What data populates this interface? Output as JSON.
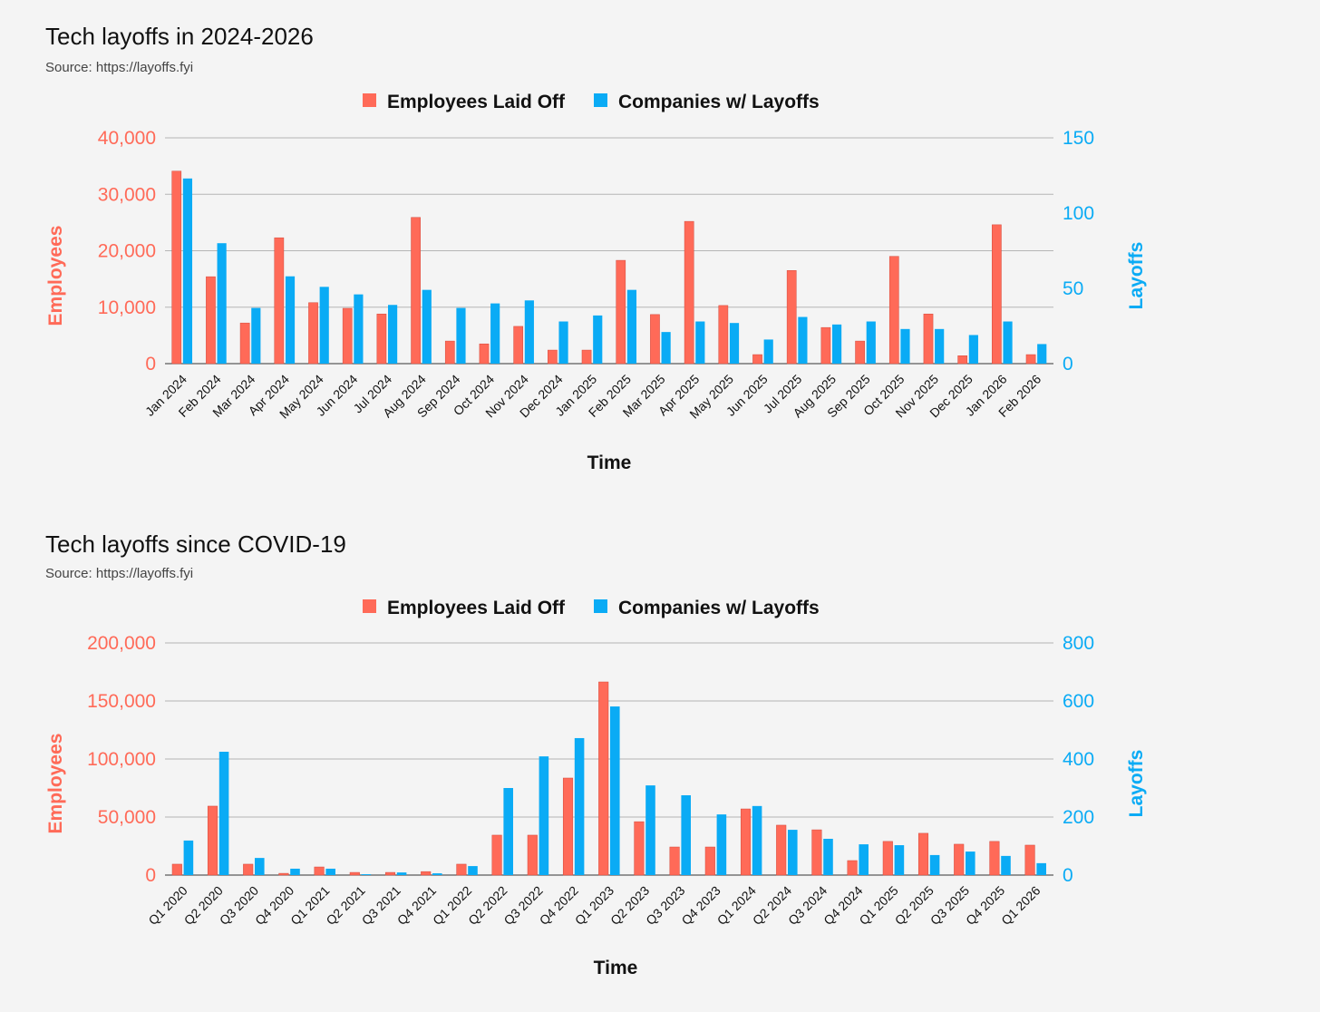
{
  "colors": {
    "employees": "#FF6A58",
    "companies": "#0AABF5"
  },
  "chart_data": [
    {
      "type": "bar",
      "title": "Tech layoffs in 2024-2026",
      "subtitle": "Source: https://layoffs.fyi",
      "xlabel": "Time",
      "ylabel": "Employees",
      "y2label": "Layoffs",
      "ylim": [
        0,
        40000
      ],
      "y2lim": [
        0,
        150
      ],
      "yticks": [
        "0",
        "10,000",
        "20,000",
        "30,000",
        "40,000"
      ],
      "yticks_values": [
        0,
        10000,
        20000,
        30000,
        40000
      ],
      "y2ticks": [
        "0",
        "50",
        "100",
        "150"
      ],
      "y2ticks_values": [
        0,
        50,
        100,
        150
      ],
      "legend": [
        "Employees Laid Off",
        "Companies w/ Layoffs"
      ],
      "legend_position": "top-center",
      "grid": true,
      "categories": [
        "Jan 2024",
        "Feb 2024",
        "Mar 2024",
        "Apr 2024",
        "May 2024",
        "Jun 2024",
        "Jul 2024",
        "Aug 2024",
        "Sep 2024",
        "Oct 2024",
        "Nov 2024",
        "Dec 2024",
        "Jan 2025",
        "Feb 2025",
        "Mar 2025",
        "Apr 2025",
        "May 2025",
        "Jun 2025",
        "Jul 2025",
        "Aug 2025",
        "Sep 2025",
        "Oct 2025",
        "Nov 2025",
        "Dec 2025",
        "Jan 2026",
        "Feb 2026"
      ],
      "series": [
        {
          "name": "Employees Laid Off",
          "axis": "left",
          "values": [
            34100,
            15400,
            7200,
            22300,
            10800,
            9800,
            8800,
            25900,
            4000,
            3500,
            6600,
            2400,
            2400,
            18300,
            8700,
            25200,
            10300,
            1600,
            16500,
            6400,
            4000,
            19000,
            8800,
            1400,
            24600,
            1600
          ]
        },
        {
          "name": "Companies w/ Layoffs",
          "axis": "right",
          "values": [
            123,
            80,
            37,
            58,
            51,
            46,
            39,
            49,
            37,
            40,
            42,
            28,
            32,
            49,
            21,
            28,
            27,
            16,
            31,
            26,
            28,
            23,
            23,
            19,
            28,
            13
          ]
        }
      ]
    },
    {
      "type": "bar",
      "title": "Tech layoffs since COVID-19",
      "subtitle": "Source: https://layoffs.fyi",
      "xlabel": "Time",
      "ylabel": "Employees",
      "y2label": "Layoffs",
      "ylim": [
        0,
        200000
      ],
      "y2lim": [
        0,
        800
      ],
      "yticks": [
        "0",
        "50,000",
        "100,000",
        "150,000",
        "200,000"
      ],
      "yticks_values": [
        0,
        50000,
        100000,
        150000,
        200000
      ],
      "y2ticks": [
        "0",
        "200",
        "400",
        "600",
        "800"
      ],
      "y2ticks_values": [
        0,
        200,
        400,
        600,
        800
      ],
      "legend": [
        "Employees Laid Off",
        "Companies w/ Layoffs"
      ],
      "legend_position": "top-center",
      "grid": true,
      "categories": [
        "Q1 2020",
        "Q2 2020",
        "Q3 2020",
        "Q4 2020",
        "Q1 2021",
        "Q2 2021",
        "Q3 2021",
        "Q4 2021",
        "Q1 2022",
        "Q2 2022",
        "Q3 2022",
        "Q4 2022",
        "Q1 2023",
        "Q2 2023",
        "Q3 2023",
        "Q4 2023",
        "Q1 2024",
        "Q2 2024",
        "Q3 2024",
        "Q4 2024",
        "Q1 2025",
        "Q2 2025",
        "Q3 2025",
        "Q4 2025",
        "Q1 2026"
      ],
      "series": [
        {
          "name": "Employees Laid Off",
          "axis": "left",
          "values": [
            9400,
            59400,
            9400,
            1500,
            7000,
            2300,
            2300,
            3000,
            9400,
            34400,
            34400,
            83600,
            166400,
            46000,
            24200,
            24200,
            57000,
            43000,
            39000,
            12500,
            29000,
            36000,
            26600,
            29000,
            25800
          ]
        },
        {
          "name": "Companies w/ Layoffs",
          "axis": "right",
          "values": [
            119,
            425,
            59,
            22,
            22,
            3,
            9,
            6,
            31,
            300,
            409,
            472,
            581,
            309,
            275,
            209,
            238,
            156,
            125,
            106,
            103,
            69,
            81,
            66,
            41
          ]
        }
      ]
    }
  ]
}
